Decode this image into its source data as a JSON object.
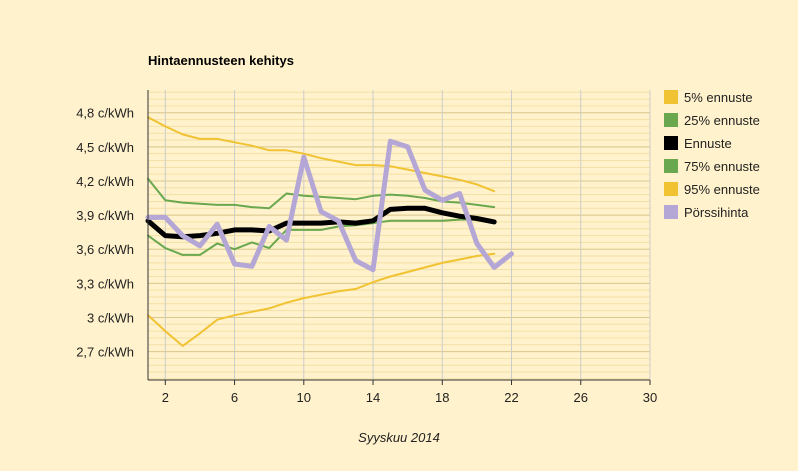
{
  "chart_data": {
    "type": "line",
    "title": "Hintaennusteen kehitys",
    "xlabel": "Syyskuu 2014",
    "ylabel": "",
    "xlim": [
      1,
      30
    ],
    "ylim": [
      2.45,
      5.0
    ],
    "x_ticks": [
      {
        "value": 2,
        "label": "2"
      },
      {
        "value": 6,
        "label": "6"
      },
      {
        "value": 10,
        "label": "10"
      },
      {
        "value": 14,
        "label": "14"
      },
      {
        "value": 18,
        "label": "18"
      },
      {
        "value": 22,
        "label": "22"
      },
      {
        "value": 26,
        "label": "26"
      },
      {
        "value": 30,
        "label": "30"
      }
    ],
    "y_ticks": [
      {
        "value": 2.7,
        "label": "2,7 c/kWh"
      },
      {
        "value": 3.0,
        "label": "3 c/kWh"
      },
      {
        "value": 3.3,
        "label": "3,3 c/kWh"
      },
      {
        "value": 3.6,
        "label": "3,6 c/kWh"
      },
      {
        "value": 3.9,
        "label": "3,9 c/kWh"
      },
      {
        "value": 4.2,
        "label": "4,2 c/kWh"
      },
      {
        "value": 4.5,
        "label": "4,5 c/kWh"
      },
      {
        "value": 4.8,
        "label": "4,8 c/kWh"
      }
    ],
    "legend_position": "right",
    "grid": true,
    "series": [
      {
        "name": "5% ennuste",
        "color": "#f1c232",
        "width": 2,
        "x": [
          1,
          2,
          3,
          4,
          5,
          6,
          7,
          8,
          9,
          10,
          11,
          12,
          13,
          14,
          15,
          16,
          17,
          18,
          19,
          20,
          21
        ],
        "values": [
          3.02,
          2.88,
          2.75,
          2.86,
          2.98,
          3.02,
          3.05,
          3.08,
          3.13,
          3.17,
          3.2,
          3.23,
          3.25,
          3.31,
          3.36,
          3.4,
          3.44,
          3.48,
          3.51,
          3.54,
          3.56
        ]
      },
      {
        "name": "25% ennuste",
        "color": "#6aa84f",
        "width": 2,
        "x": [
          1,
          2,
          3,
          4,
          5,
          6,
          7,
          8,
          9,
          10,
          11,
          12,
          13,
          14,
          15,
          16,
          17,
          18,
          19,
          20,
          21
        ],
        "values": [
          3.72,
          3.61,
          3.55,
          3.55,
          3.65,
          3.6,
          3.66,
          3.61,
          3.77,
          3.77,
          3.77,
          3.8,
          3.81,
          3.83,
          3.85,
          3.85,
          3.85,
          3.85,
          3.86,
          3.86,
          3.83
        ]
      },
      {
        "name": "Ennuste",
        "color": "#000000",
        "width": 5,
        "x": [
          1,
          2,
          3,
          4,
          5,
          6,
          7,
          8,
          9,
          10,
          11,
          12,
          13,
          14,
          15,
          16,
          17,
          18,
          19,
          20,
          21
        ],
        "values": [
          3.85,
          3.72,
          3.71,
          3.72,
          3.74,
          3.77,
          3.77,
          3.76,
          3.83,
          3.83,
          3.83,
          3.84,
          3.83,
          3.85,
          3.95,
          3.96,
          3.96,
          3.92,
          3.89,
          3.87,
          3.84
        ]
      },
      {
        "name": "75% ennuste",
        "color": "#6aa84f",
        "width": 2,
        "x": [
          1,
          2,
          3,
          4,
          5,
          6,
          7,
          8,
          9,
          10,
          11,
          12,
          13,
          14,
          15,
          16,
          17,
          18,
          19,
          20,
          21
        ],
        "values": [
          4.22,
          4.03,
          4.01,
          4.0,
          3.99,
          3.99,
          3.97,
          3.96,
          4.09,
          4.07,
          4.06,
          4.05,
          4.04,
          4.07,
          4.08,
          4.07,
          4.05,
          4.02,
          4.01,
          3.99,
          3.97
        ]
      },
      {
        "name": "95% ennuste",
        "color": "#f1c232",
        "width": 2,
        "x": [
          1,
          2,
          3,
          4,
          5,
          6,
          7,
          8,
          9,
          10,
          11,
          12,
          13,
          14,
          15,
          16,
          17,
          18,
          19,
          20,
          21
        ],
        "values": [
          4.76,
          4.68,
          4.61,
          4.57,
          4.57,
          4.54,
          4.51,
          4.47,
          4.47,
          4.44,
          4.4,
          4.37,
          4.34,
          4.34,
          4.33,
          4.3,
          4.27,
          4.24,
          4.21,
          4.17,
          4.11
        ]
      },
      {
        "name": "Pörssihinta",
        "color": "#b4a7d6",
        "width": 5,
        "x": [
          1,
          2,
          3,
          4,
          5,
          6,
          7,
          8,
          9,
          10,
          11,
          12,
          13,
          14,
          15,
          16,
          17,
          18,
          19,
          20,
          21,
          22
        ],
        "values": [
          3.88,
          3.88,
          3.72,
          3.63,
          3.82,
          3.47,
          3.45,
          3.8,
          3.68,
          4.41,
          3.93,
          3.85,
          3.5,
          3.42,
          4.55,
          4.5,
          4.12,
          4.03,
          4.09,
          3.65,
          3.44,
          3.56
        ]
      }
    ]
  }
}
